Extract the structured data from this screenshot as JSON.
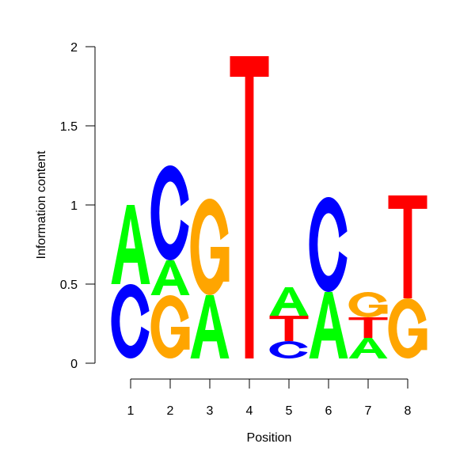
{
  "chart_data": {
    "type": "sequence-logo",
    "title": "",
    "xlabel": "Position",
    "ylabel": "Information content",
    "ylim": [
      0,
      2
    ],
    "y_ticks": [
      "0",
      "0.5",
      "1",
      "1.5",
      "2"
    ],
    "x_ticks": [
      "1",
      "2",
      "3",
      "4",
      "5",
      "6",
      "7",
      "8"
    ],
    "colors": {
      "A": "#00ff00",
      "C": "#0000ff",
      "G": "#ffa500",
      "T": "#ff0000"
    },
    "positions": [
      {
        "x": "1",
        "stack": [
          {
            "letter": "C",
            "height": 0.47
          },
          {
            "letter": "A",
            "height": 0.5
          }
        ]
      },
      {
        "x": "2",
        "stack": [
          {
            "letter": "G",
            "height": 0.4
          },
          {
            "letter": "A",
            "height": 0.22
          },
          {
            "letter": "C",
            "height": 0.6
          }
        ]
      },
      {
        "x": "3",
        "stack": [
          {
            "letter": "A",
            "height": 0.4
          },
          {
            "letter": "G",
            "height": 0.61
          }
        ]
      },
      {
        "x": "4",
        "stack": [
          {
            "letter": "T",
            "height": 1.91
          }
        ]
      },
      {
        "x": "5",
        "stack": [
          {
            "letter": "C",
            "height": 0.11
          },
          {
            "letter": "T",
            "height": 0.16
          },
          {
            "letter": "A",
            "height": 0.18
          }
        ]
      },
      {
        "x": "6",
        "stack": [
          {
            "letter": "A",
            "height": 0.42
          },
          {
            "letter": "C",
            "height": 0.6
          }
        ]
      },
      {
        "x": "7",
        "stack": [
          {
            "letter": "A",
            "height": 0.13
          },
          {
            "letter": "T",
            "height": 0.13
          },
          {
            "letter": "G",
            "height": 0.16
          }
        ]
      },
      {
        "x": "8",
        "stack": [
          {
            "letter": "G",
            "height": 0.38
          },
          {
            "letter": "T",
            "height": 0.65
          }
        ]
      }
    ]
  }
}
